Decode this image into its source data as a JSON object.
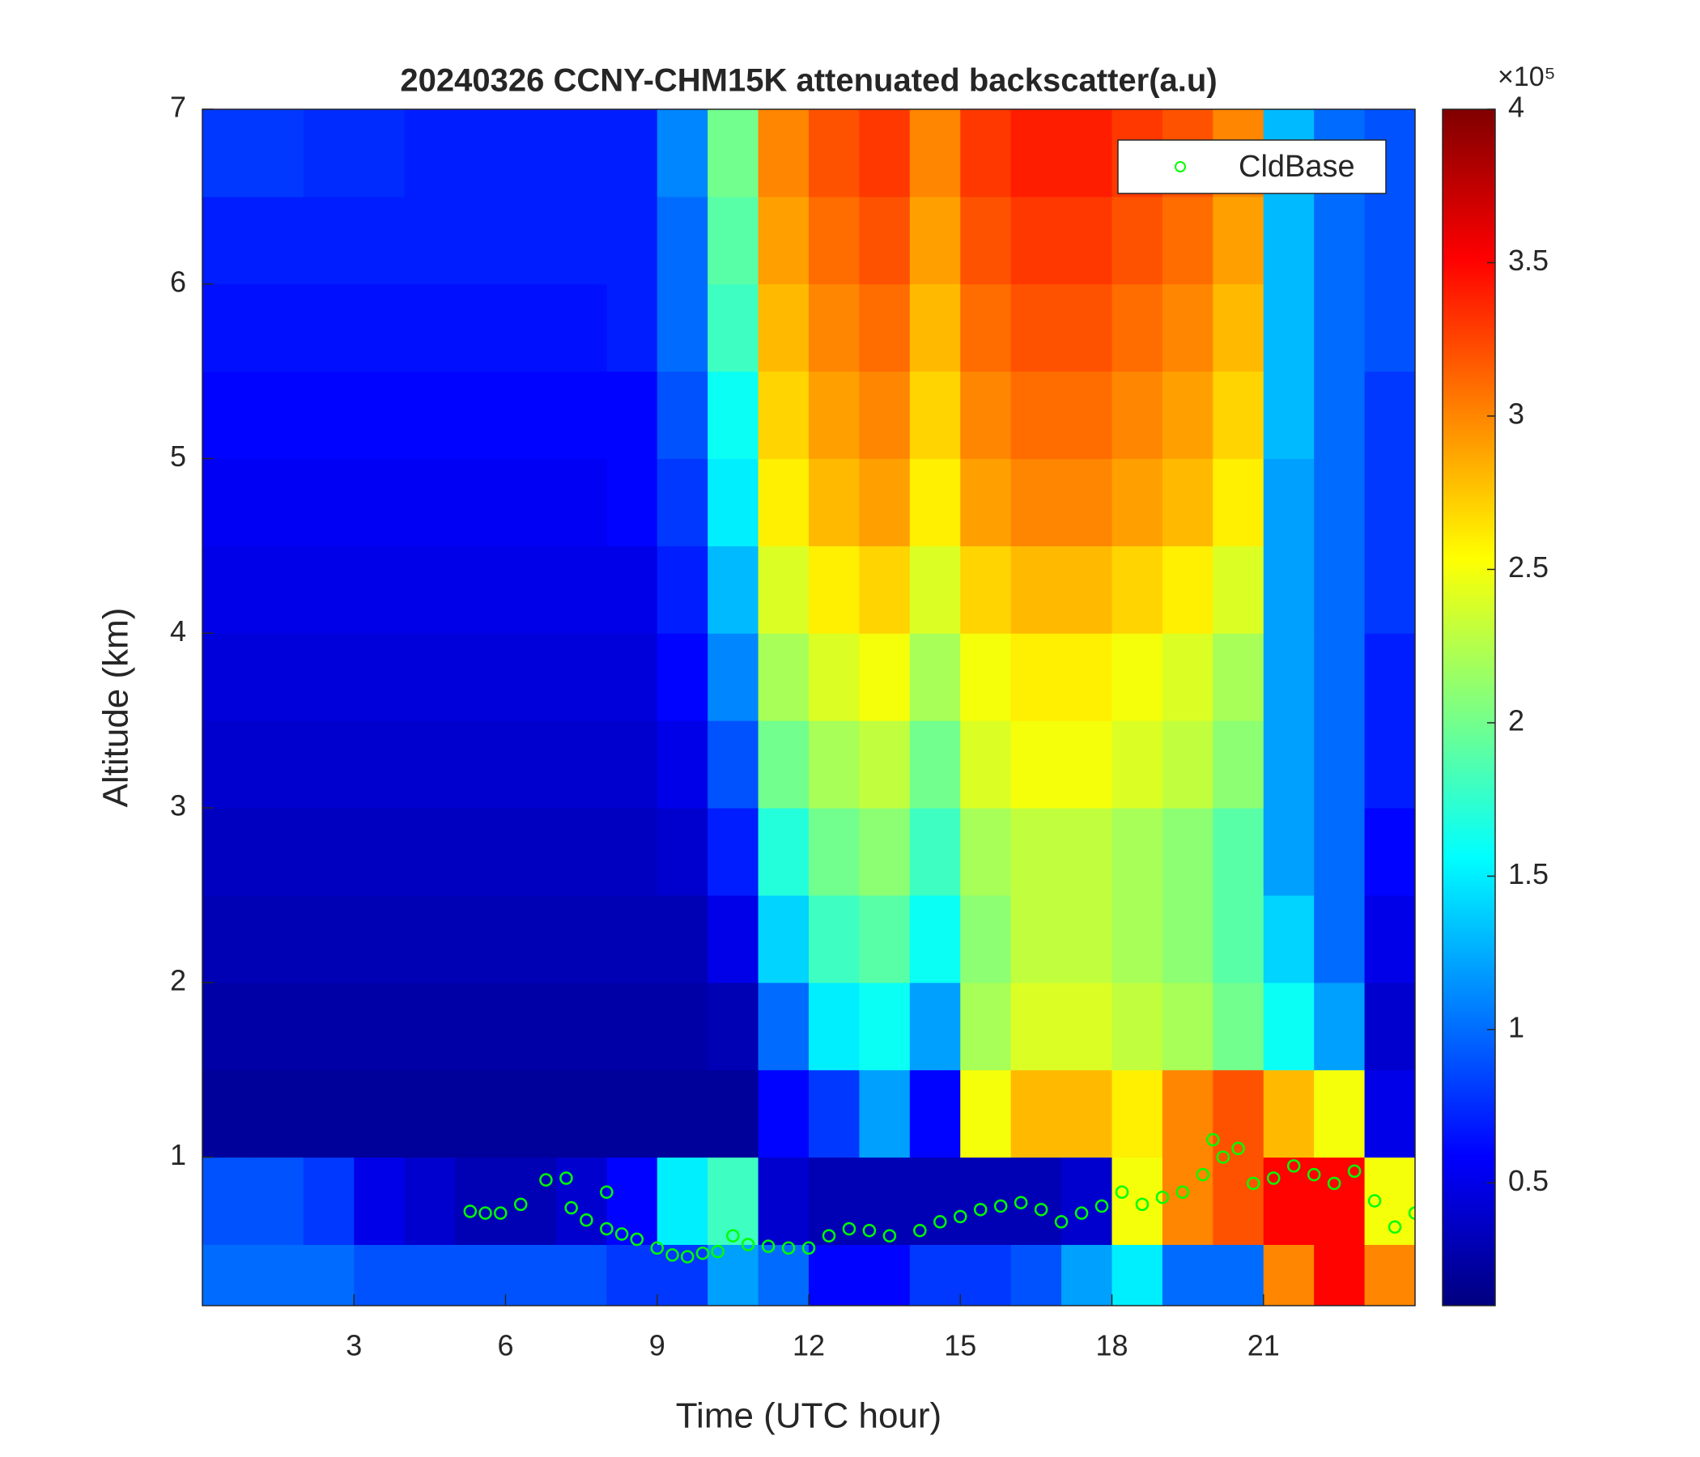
{
  "chart_data": {
    "type": "heatmap",
    "title": "20240326 CCNY-CHM15K attenuated backscatter(a.u)",
    "x_label": "Time (UTC hour)",
    "y_label": "Altitude (km)",
    "xlim": [
      0,
      24
    ],
    "ylim": [
      0.15,
      7
    ],
    "xticks": [
      3,
      6,
      9,
      12,
      15,
      18,
      21
    ],
    "yticks": [
      1,
      2,
      3,
      4,
      5,
      6,
      7
    ],
    "colormap": "jet",
    "clim": [
      0.1,
      4
    ],
    "colorbar_ticks": [
      0.5,
      1,
      1.5,
      2,
      2.5,
      3,
      3.5,
      4
    ],
    "colorbar_multiplier": "×10⁵",
    "legend": "upper right",
    "x": [
      0.5,
      1.5,
      2.5,
      3.5,
      4.5,
      5.5,
      6.5,
      7.5,
      8.5,
      9.5,
      10.5,
      11.5,
      12.5,
      13.5,
      14.5,
      15.5,
      16.5,
      17.5,
      18.5,
      19.5,
      20.5,
      21.5,
      22.5,
      23.5
    ],
    "y": [
      0.25,
      0.75,
      1.25,
      1.75,
      2.25,
      2.75,
      3.25,
      3.75,
      4.25,
      4.75,
      5.25,
      5.75,
      6.25,
      6.75
    ],
    "z": [
      [
        1.0,
        1.0,
        1.0,
        0.9,
        0.9,
        0.9,
        0.9,
        0.9,
        0.8,
        0.8,
        1.2,
        1.0,
        0.6,
        0.6,
        0.8,
        0.8,
        0.9,
        1.2,
        1.5,
        1.0,
        1.0,
        3.0,
        3.5,
        3.0
      ],
      [
        0.9,
        0.9,
        0.8,
        0.5,
        0.4,
        0.3,
        0.3,
        0.4,
        0.6,
        1.5,
        1.8,
        0.4,
        0.3,
        0.3,
        0.3,
        0.3,
        0.3,
        0.4,
        2.5,
        3.0,
        3.2,
        3.5,
        3.5,
        2.5
      ],
      [
        0.2,
        0.2,
        0.2,
        0.2,
        0.2,
        0.2,
        0.2,
        0.2,
        0.2,
        0.2,
        0.2,
        0.6,
        0.8,
        1.2,
        0.6,
        2.5,
        2.8,
        2.8,
        2.6,
        3.0,
        3.2,
        2.8,
        2.5,
        0.5
      ],
      [
        0.25,
        0.25,
        0.25,
        0.25,
        0.25,
        0.25,
        0.25,
        0.25,
        0.25,
        0.25,
        0.3,
        1.0,
        1.5,
        1.6,
        1.2,
        2.2,
        2.4,
        2.4,
        2.3,
        2.2,
        2.0,
        1.6,
        1.2,
        0.4
      ],
      [
        0.3,
        0.3,
        0.3,
        0.3,
        0.3,
        0.3,
        0.3,
        0.3,
        0.3,
        0.3,
        0.5,
        1.4,
        1.8,
        1.9,
        1.6,
        2.1,
        2.3,
        2.3,
        2.2,
        2.1,
        1.9,
        1.4,
        1.0,
        0.5
      ],
      [
        0.35,
        0.35,
        0.35,
        0.35,
        0.35,
        0.35,
        0.35,
        0.35,
        0.35,
        0.4,
        0.7,
        1.7,
        2.0,
        2.1,
        1.8,
        2.2,
        2.3,
        2.3,
        2.2,
        2.1,
        1.9,
        1.2,
        1.0,
        0.6
      ],
      [
        0.4,
        0.4,
        0.4,
        0.4,
        0.4,
        0.4,
        0.4,
        0.4,
        0.4,
        0.5,
        0.9,
        2.0,
        2.2,
        2.3,
        2.0,
        2.4,
        2.5,
        2.5,
        2.4,
        2.3,
        2.1,
        1.2,
        1.0,
        0.7
      ],
      [
        0.45,
        0.45,
        0.45,
        0.45,
        0.45,
        0.45,
        0.45,
        0.45,
        0.45,
        0.6,
        1.1,
        2.2,
        2.4,
        2.5,
        2.2,
        2.5,
        2.6,
        2.6,
        2.5,
        2.4,
        2.2,
        1.2,
        1.0,
        0.7
      ],
      [
        0.5,
        0.5,
        0.5,
        0.5,
        0.5,
        0.5,
        0.5,
        0.5,
        0.5,
        0.7,
        1.3,
        2.4,
        2.6,
        2.7,
        2.4,
        2.7,
        2.8,
        2.8,
        2.7,
        2.6,
        2.4,
        1.2,
        1.0,
        0.8
      ],
      [
        0.55,
        0.55,
        0.55,
        0.55,
        0.55,
        0.55,
        0.55,
        0.55,
        0.6,
        0.8,
        1.5,
        2.6,
        2.8,
        2.9,
        2.6,
        2.9,
        3.0,
        3.0,
        2.9,
        2.8,
        2.6,
        1.2,
        1.0,
        0.8
      ],
      [
        0.6,
        0.6,
        0.6,
        0.6,
        0.6,
        0.6,
        0.6,
        0.6,
        0.6,
        0.9,
        1.6,
        2.7,
        2.9,
        3.0,
        2.7,
        3.0,
        3.1,
        3.1,
        3.0,
        2.9,
        2.7,
        1.3,
        1.0,
        0.8
      ],
      [
        0.65,
        0.65,
        0.65,
        0.65,
        0.65,
        0.65,
        0.65,
        0.65,
        0.7,
        1.0,
        1.8,
        2.8,
        3.0,
        3.1,
        2.8,
        3.1,
        3.2,
        3.2,
        3.1,
        3.0,
        2.8,
        1.3,
        1.0,
        0.9
      ],
      [
        0.7,
        0.7,
        0.7,
        0.7,
        0.7,
        0.7,
        0.7,
        0.7,
        0.7,
        1.0,
        1.9,
        2.9,
        3.1,
        3.2,
        2.9,
        3.2,
        3.3,
        3.3,
        3.2,
        3.1,
        2.9,
        1.3,
        1.0,
        0.9
      ],
      [
        0.8,
        0.8,
        0.75,
        0.75,
        0.7,
        0.7,
        0.7,
        0.7,
        0.7,
        1.1,
        2.0,
        3.0,
        3.2,
        3.3,
        3.0,
        3.3,
        3.4,
        3.4,
        3.3,
        3.2,
        3.0,
        1.3,
        1.0,
        0.9
      ]
    ],
    "series": [
      {
        "name": "CldBase",
        "type": "scatter",
        "color": "#00ff00",
        "x": [
          5.3,
          5.6,
          5.9,
          6.3,
          6.8,
          7.2,
          7.3,
          7.6,
          8.0,
          8.0,
          8.3,
          8.6,
          9.0,
          9.3,
          9.6,
          9.9,
          10.2,
          10.5,
          10.8,
          11.2,
          11.6,
          12.0,
          12.4,
          12.8,
          13.2,
          13.6,
          14.2,
          14.6,
          15.0,
          15.4,
          15.8,
          16.2,
          16.6,
          17.0,
          17.4,
          17.8,
          18.2,
          18.6,
          19.0,
          19.4,
          19.8,
          20.0,
          20.2,
          20.5,
          20.8,
          21.2,
          21.6,
          22.0,
          22.4,
          22.8,
          23.2,
          23.6,
          24.0
        ],
        "y": [
          0.69,
          0.68,
          0.68,
          0.73,
          0.87,
          0.88,
          0.71,
          0.64,
          0.59,
          0.8,
          0.56,
          0.53,
          0.48,
          0.44,
          0.43,
          0.45,
          0.46,
          0.55,
          0.5,
          0.49,
          0.48,
          0.48,
          0.55,
          0.59,
          0.58,
          0.55,
          0.58,
          0.63,
          0.66,
          0.7,
          0.72,
          0.74,
          0.7,
          0.63,
          0.68,
          0.72,
          0.8,
          0.73,
          0.77,
          0.8,
          0.9,
          1.1,
          1.0,
          1.05,
          0.85,
          0.88,
          0.95,
          0.9,
          0.85,
          0.92,
          0.75,
          0.6,
          0.68
        ]
      }
    ]
  }
}
